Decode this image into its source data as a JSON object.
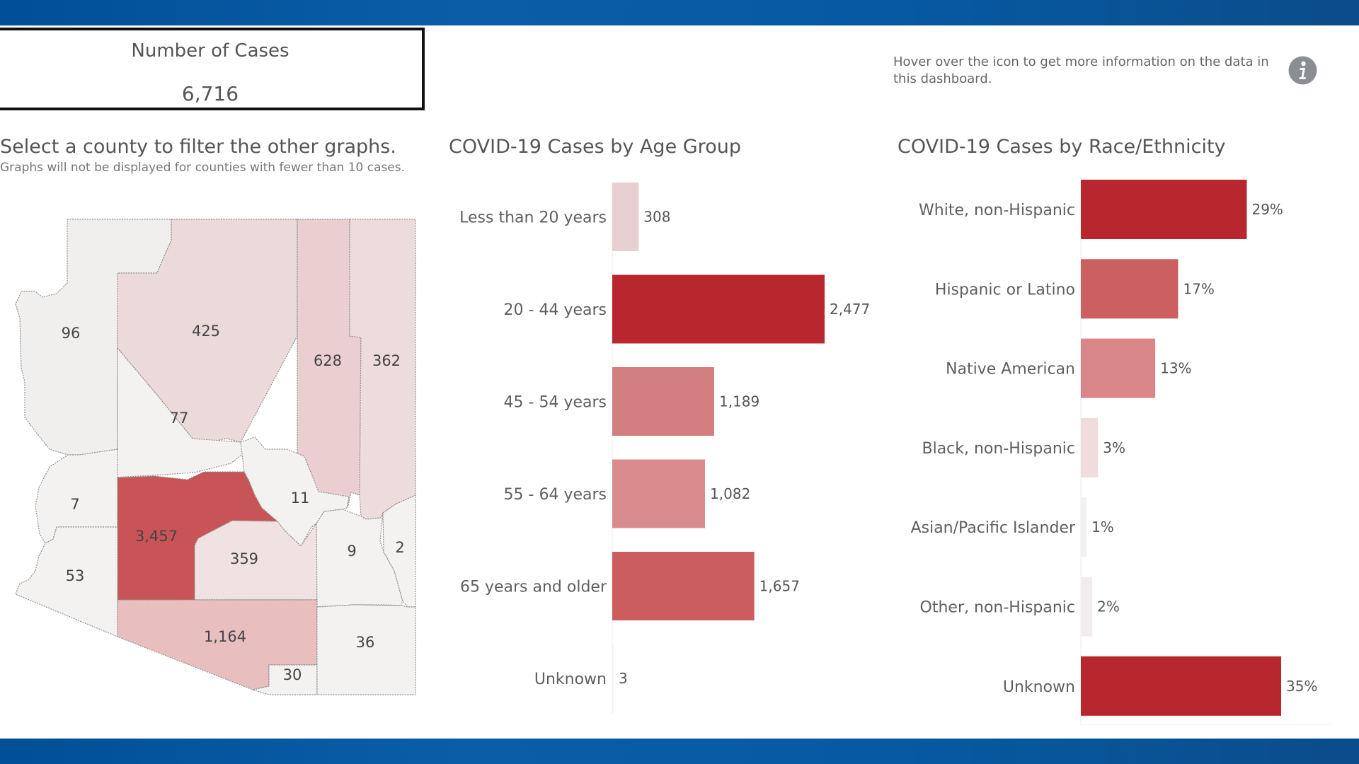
{
  "kpi": {
    "label": "Number of Cases",
    "value": "6,716"
  },
  "info": {
    "text": "Hover over the icon to get more information on the data in this dashboard.",
    "icon": "info-icon"
  },
  "map": {
    "title": "Select a county to filter the other graphs.",
    "subtitle": "Graphs will not be displayed for counties with fewer than 10 cases.",
    "counties": [
      {
        "value": 96,
        "label": "96"
      },
      {
        "value": 425,
        "label": "425"
      },
      {
        "value": 628,
        "label": "628"
      },
      {
        "value": 362,
        "label": "362"
      },
      {
        "value": 77,
        "label": "77"
      },
      {
        "value": 7,
        "label": "7"
      },
      {
        "value": 3457,
        "label": "3,457"
      },
      {
        "value": 11,
        "label": "11"
      },
      {
        "value": 359,
        "label": "359"
      },
      {
        "value": 9,
        "label": "9"
      },
      {
        "value": 2,
        "label": "2"
      },
      {
        "value": 53,
        "label": "53"
      },
      {
        "value": 1164,
        "label": "1,164"
      },
      {
        "value": 30,
        "label": "30"
      },
      {
        "value": 36,
        "label": "36"
      }
    ]
  },
  "colors": {
    "band": "#005aa0",
    "dark_red": "#b8272d",
    "mid_red": "#cc5d5d",
    "light_red": "#d9888a",
    "pale_red": "#e8c9cb",
    "very_pale": "#f1eeee"
  },
  "chart_data": [
    {
      "type": "bar",
      "orientation": "horizontal",
      "title": "COVID-19 Cases by Age Group",
      "categories": [
        "Less than 20 years",
        "20 -  44 years",
        "45 - 54 years",
        "55 - 64 years",
        "65 years and older",
        "Unknown"
      ],
      "values": [
        308,
        2477,
        1189,
        1082,
        1657,
        3
      ],
      "value_labels": [
        "308",
        "2,477",
        "1,189",
        "1,082",
        "1,657",
        "3"
      ],
      "colors": [
        "#e8cfd1",
        "#b8272d",
        "#d37f80",
        "#d98b8d",
        "#cc5d5e",
        "#f6f3f3"
      ],
      "xlim": [
        0,
        2477
      ]
    },
    {
      "type": "bar",
      "orientation": "horizontal",
      "title": "COVID-19 Cases by Race/Ethnicity",
      "categories": [
        "White, non-Hispanic",
        "Hispanic or Latino",
        "Native American",
        "Black, non-Hispanic",
        "Asian/Pacific Islander",
        "Other, non-Hispanic",
        "Unknown"
      ],
      "values": [
        29,
        17,
        13,
        3,
        1,
        2,
        35
      ],
      "value_labels": [
        "29%",
        "17%",
        "13%",
        "3%",
        "1%",
        "2%",
        "35%"
      ],
      "colors": [
        "#b8272d",
        "#cc5f5f",
        "#d98689",
        "#efdcdd",
        "#f3f0f0",
        "#f1eded",
        "#b8272d"
      ],
      "xlim": [
        0,
        35
      ]
    }
  ]
}
